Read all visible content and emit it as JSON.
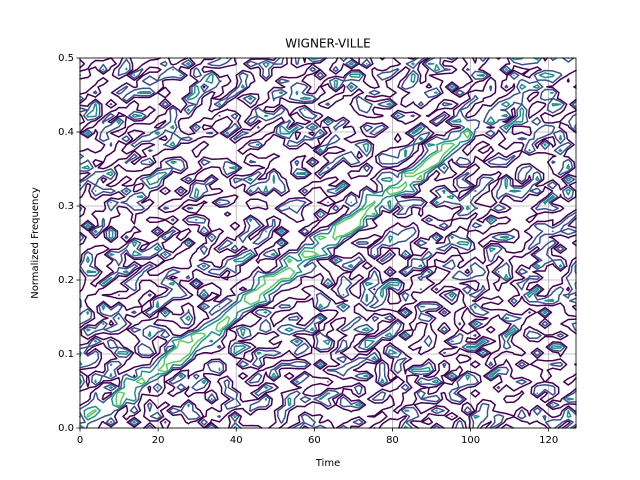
{
  "chart_data": {
    "type": "contour",
    "title": "WIGNER-VILLE",
    "x_label": "Time",
    "y_label": "Normalized Frequency",
    "xlim": [
      0,
      127
    ],
    "ylim": [
      0,
      0.5
    ],
    "xticks": [
      0,
      20,
      40,
      60,
      80,
      100,
      120
    ],
    "yticks": [
      {
        "value": 0,
        "label": "0.0"
      },
      0.1,
      0.2,
      0.3,
      0.4,
      0.5
    ],
    "grid": true,
    "level_colors": [
      "#440154",
      "#3b528b",
      "#21918c",
      "#5ec962"
    ]
  }
}
